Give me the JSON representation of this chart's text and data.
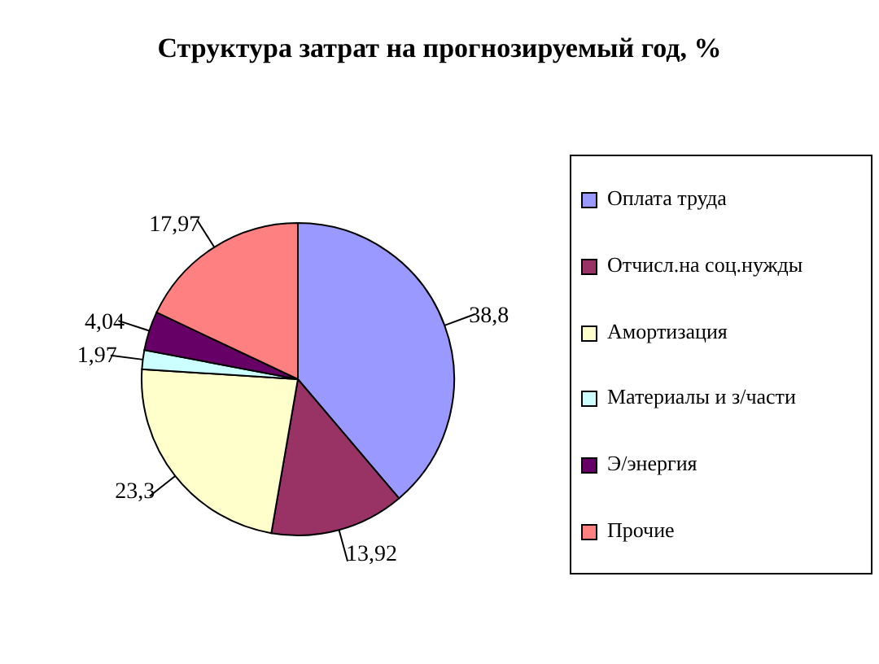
{
  "chart_data": {
    "type": "pie",
    "title": "Структура затрат на прогнозируемый год, %",
    "categories": [
      "Оплата труда",
      "Отчисл.на соц.нужды",
      "Амортизация",
      "Материалы и з/части",
      "Э/энергия",
      "Прочие"
    ],
    "values": [
      38.8,
      13.92,
      23.3,
      1.97,
      4.04,
      17.97
    ],
    "value_labels": [
      "38,8",
      "13,92",
      "23,3",
      "1,97",
      "4,04",
      "17,97"
    ],
    "colors": [
      "#9999ff",
      "#993366",
      "#ffffcc",
      "#ccffff",
      "#660066",
      "#ff8080"
    ],
    "legend": "right"
  }
}
